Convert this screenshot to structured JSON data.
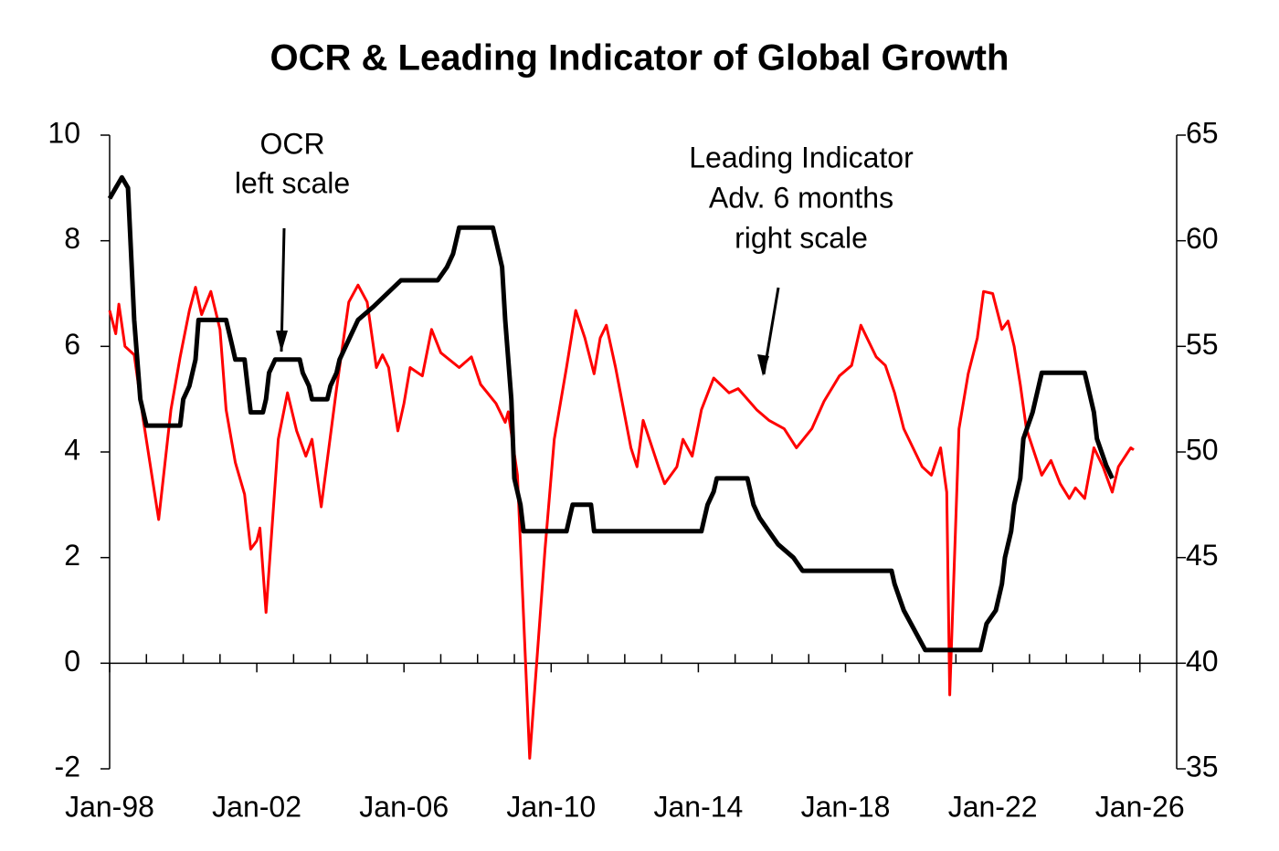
{
  "chart_data": {
    "type": "line",
    "title": "OCR & Leading Indicator of Global Growth",
    "annotations": [
      {
        "lines": [
          "OCR",
          "left scale"
        ]
      },
      {
        "lines": [
          "Leading Indicator",
          "Adv. 6 months",
          "right scale"
        ]
      }
    ],
    "xlim": [
      "1998-01",
      "2027-01"
    ],
    "xticks": [
      {
        "value": "1998-01",
        "label": "Jan-98"
      },
      {
        "value": "2002-01",
        "label": "Jan-02"
      },
      {
        "value": "2006-01",
        "label": "Jan-06"
      },
      {
        "value": "2010-01",
        "label": "Jan-10"
      },
      {
        "value": "2014-01",
        "label": "Jan-14"
      },
      {
        "value": "2018-01",
        "label": "Jan-18"
      },
      {
        "value": "2022-01",
        "label": "Jan-22"
      },
      {
        "value": "2026-01",
        "label": "Jan-26"
      }
    ],
    "xminorticks": [
      "1999-01",
      "2000-01",
      "2001-01",
      "2003-01",
      "2004-01",
      "2005-01",
      "2007-01",
      "2008-01",
      "2009-01",
      "2011-01",
      "2012-01",
      "2013-01",
      "2015-01",
      "2016-01",
      "2017-01",
      "2019-01",
      "2020-01",
      "2021-01",
      "2023-01",
      "2024-01",
      "2025-01",
      "2026-01"
    ],
    "ylim": [
      -2,
      10
    ],
    "yticks": [
      -2,
      0,
      2,
      4,
      6,
      8,
      10
    ],
    "y2lim": [
      35,
      65
    ],
    "y2ticks": [
      35,
      40,
      45,
      50,
      55,
      60,
      65
    ],
    "series": [
      {
        "name": "OCR",
        "color": "#000000",
        "axis": "y",
        "x": [
          "1998-01",
          "1998-03",
          "1998-05",
          "1998-07",
          "1998-09",
          "1998-11",
          "1999-01",
          "1999-12",
          "2000-01",
          "2000-03",
          "2000-05",
          "2000-06",
          "2001-03",
          "2001-04",
          "2001-05",
          "2001-06",
          "2001-09",
          "2001-10",
          "2001-11",
          "2002-03",
          "2002-04",
          "2002-05",
          "2002-07",
          "2003-03",
          "2003-04",
          "2003-06",
          "2003-07",
          "2003-12",
          "2004-01",
          "2004-03",
          "2004-04",
          "2004-06",
          "2004-08",
          "2004-10",
          "2005-03",
          "2005-12",
          "2006-12",
          "2007-03",
          "2007-05",
          "2007-06",
          "2007-07",
          "2008-06",
          "2008-07",
          "2008-09",
          "2008-10",
          "2008-12",
          "2009-01",
          "2009-03",
          "2009-04",
          "2010-06",
          "2010-07",
          "2010-08",
          "2011-02",
          "2011-03",
          "2014-02",
          "2014-03",
          "2014-04",
          "2014-06",
          "2014-07",
          "2015-05",
          "2015-06",
          "2015-07",
          "2015-09",
          "2015-12",
          "2016-03",
          "2016-08",
          "2016-11",
          "2019-04",
          "2019-05",
          "2019-08",
          "2020-03",
          "2021-09",
          "2021-10",
          "2021-11",
          "2022-02",
          "2022-04",
          "2022-05",
          "2022-07",
          "2022-08",
          "2022-10",
          "2022-11",
          "2023-02",
          "2023-04",
          "2023-05",
          "2024-07",
          "2024-08",
          "2024-10",
          "2024-11",
          "2025-02",
          "2025-04"
        ],
        "values": [
          8.8,
          9.0,
          9.2,
          9.0,
          6.5,
          5.0,
          4.5,
          4.5,
          5.0,
          5.25,
          5.75,
          6.5,
          6.5,
          6.25,
          6.0,
          5.75,
          5.75,
          5.25,
          4.75,
          4.75,
          5.0,
          5.5,
          5.75,
          5.75,
          5.5,
          5.25,
          5.0,
          5.0,
          5.25,
          5.5,
          5.75,
          6.0,
          6.25,
          6.5,
          6.75,
          7.25,
          7.25,
          7.5,
          7.75,
          8.0,
          8.25,
          8.25,
          8.0,
          7.5,
          6.5,
          5.0,
          3.5,
          3.0,
          2.5,
          2.5,
          2.75,
          3.0,
          3.0,
          2.5,
          2.5,
          2.75,
          3.0,
          3.25,
          3.5,
          3.5,
          3.25,
          3.0,
          2.75,
          2.5,
          2.25,
          2.0,
          1.75,
          1.75,
          1.5,
          1.0,
          0.25,
          0.25,
          0.5,
          0.75,
          1.0,
          1.5,
          2.0,
          2.5,
          3.0,
          3.5,
          4.25,
          4.75,
          5.25,
          5.5,
          5.5,
          5.25,
          4.75,
          4.25,
          3.75,
          3.5
        ]
      },
      {
        "name": "Leading Indicator",
        "color": "#ff0000",
        "axis": "y2",
        "x": [
          "1998-01",
          "1998-03",
          "1998-04",
          "1998-06",
          "1998-09",
          "1998-12",
          "1999-05",
          "1999-09",
          "1999-12",
          "2000-03",
          "2000-05",
          "2000-07",
          "2000-10",
          "2001-01",
          "2001-03",
          "2001-06",
          "2001-09",
          "2001-11",
          "2002-01",
          "2002-02",
          "2002-04",
          "2002-08",
          "2002-11",
          "2003-02",
          "2003-05",
          "2003-07",
          "2003-10",
          "2004-03",
          "2004-07",
          "2004-10",
          "2005-01",
          "2005-04",
          "2005-06",
          "2005-08",
          "2005-11",
          "2006-01",
          "2006-03",
          "2006-07",
          "2006-10",
          "2007-01",
          "2007-07",
          "2007-11",
          "2008-02",
          "2008-07",
          "2008-10",
          "2008-11",
          "2009-02",
          "2009-06",
          "2009-11",
          "2010-02",
          "2010-06",
          "2010-09",
          "2010-12",
          "2011-03",
          "2011-05",
          "2011-07",
          "2011-10",
          "2012-03",
          "2012-05",
          "2012-07",
          "2012-12",
          "2013-02",
          "2013-06",
          "2013-08",
          "2013-11",
          "2014-02",
          "2014-06",
          "2014-11",
          "2015-02",
          "2015-08",
          "2015-12",
          "2016-05",
          "2016-09",
          "2017-02",
          "2017-06",
          "2017-11",
          "2018-03",
          "2018-06",
          "2018-11",
          "2019-02",
          "2019-05",
          "2019-08",
          "2020-02",
          "2020-05",
          "2020-08",
          "2020-10",
          "2020-11",
          "2021-02",
          "2021-05",
          "2021-08",
          "2021-10",
          "2022-01",
          "2022-04",
          "2022-06",
          "2022-08",
          "2022-10",
          "2022-12",
          "2023-05",
          "2023-08",
          "2023-11",
          "2024-02",
          "2024-04",
          "2024-07",
          "2024-10",
          "2025-01",
          "2025-04",
          "2025-06",
          "2025-10",
          "2025-11"
        ],
        "values": [
          56.7,
          55.6,
          57.0,
          55.0,
          54.6,
          51.5,
          46.8,
          52.0,
          54.5,
          56.7,
          57.8,
          56.5,
          57.6,
          55.8,
          52.0,
          49.5,
          48.0,
          45.4,
          45.8,
          46.4,
          42.4,
          50.6,
          52.8,
          51.0,
          49.8,
          50.6,
          47.4,
          53.0,
          57.1,
          57.9,
          57.1,
          54.0,
          54.6,
          54.0,
          51.0,
          52.3,
          54.0,
          53.6,
          55.8,
          54.7,
          54.0,
          54.5,
          53.2,
          52.3,
          51.4,
          51.9,
          48.9,
          35.5,
          45.4,
          50.6,
          54.0,
          56.7,
          55.4,
          53.7,
          55.4,
          56.0,
          54.0,
          50.2,
          49.3,
          51.5,
          49.3,
          48.5,
          49.3,
          50.6,
          49.8,
          52.0,
          53.5,
          52.8,
          53.0,
          52.0,
          51.5,
          51.1,
          50.2,
          51.1,
          52.4,
          53.6,
          54.1,
          56.0,
          54.5,
          54.1,
          52.8,
          51.1,
          49.3,
          48.9,
          50.2,
          48.1,
          38.5,
          51.1,
          53.7,
          55.4,
          57.6,
          57.5,
          55.8,
          56.2,
          55.0,
          53.2,
          51.1,
          48.9,
          49.6,
          48.5,
          47.8,
          48.3,
          47.8,
          50.2,
          49.3,
          48.1,
          49.3,
          50.2,
          50.1
        ]
      }
    ]
  }
}
